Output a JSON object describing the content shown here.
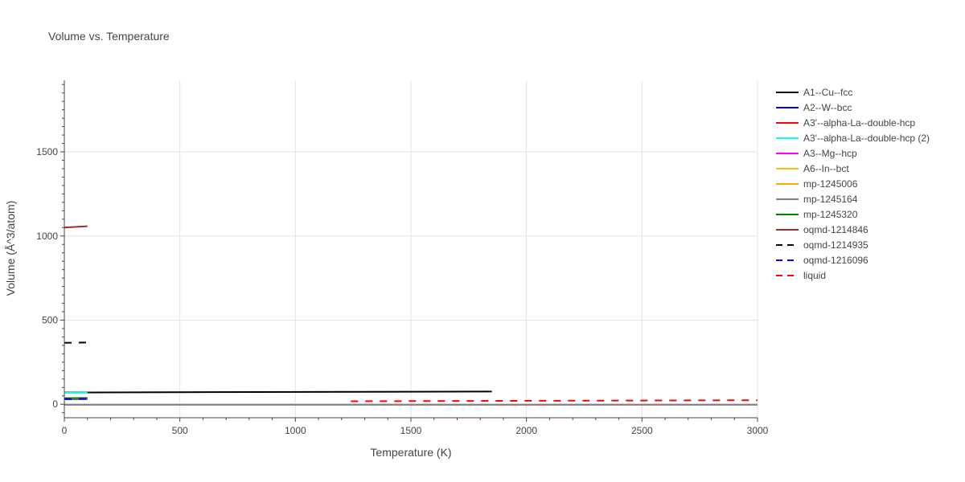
{
  "chart_data": {
    "type": "line",
    "title": "Volume vs. Temperature",
    "xlabel": "Temperature (K)",
    "ylabel": "Volume (Å^3/atom)",
    "xlim": [
      0,
      3000
    ],
    "ylim": [
      -80,
      1925
    ],
    "xticks": [
      0,
      500,
      1000,
      1500,
      2000,
      2500,
      3000
    ],
    "yticks": [
      0,
      500,
      1000,
      1500
    ],
    "xtick_labels": [
      "0",
      "500",
      "1000",
      "1500",
      "2000",
      "2500",
      "3000"
    ],
    "ytick_labels": [
      "0",
      "500",
      "1000",
      "1500"
    ],
    "grid": true,
    "legend_position": "right",
    "series": [
      {
        "name": "A1--Cu--fcc",
        "color": "#000000",
        "dash": "solid",
        "x": [
          0,
          1850
        ],
        "y": [
          70,
          76
        ]
      },
      {
        "name": "A2--W--bcc",
        "color": "#0000ff",
        "dash": "solid",
        "x": [
          0,
          100
        ],
        "y": [
          30,
          31
        ]
      },
      {
        "name": "A3'--alpha-La--double-hcp",
        "color": "#ff0000",
        "dash": "solid",
        "x": [
          0,
          100
        ],
        "y": [
          34,
          35
        ]
      },
      {
        "name": "A3'--alpha-La--double-hcp (2)",
        "color": "#00ffff",
        "dash": "solid",
        "x": [
          0,
          100
        ],
        "y": [
          68,
          69
        ]
      },
      {
        "name": "A3--Mg--hcp",
        "color": "#ff00ff",
        "dash": "solid",
        "x": [
          0,
          100
        ],
        "y": [
          35,
          36
        ]
      },
      {
        "name": "A6--In--bct",
        "color": "#ffbf00",
        "dash": "solid",
        "x": [
          0,
          100
        ],
        "y": [
          37,
          38
        ]
      },
      {
        "name": "mp-1245006",
        "color": "#ffa500",
        "dash": "solid",
        "x": [
          0,
          100
        ],
        "y": [
          33,
          34
        ]
      },
      {
        "name": "mp-1245164",
        "color": "#808080",
        "dash": "solid",
        "x": [
          0,
          3000
        ],
        "y": [
          -3,
          -3
        ]
      },
      {
        "name": "mp-1245320",
        "color": "#008000",
        "dash": "solid",
        "x": [
          0,
          100
        ],
        "y": [
          36,
          37
        ]
      },
      {
        "name": "oqmd-1214846",
        "color": "#a52a2a",
        "dash": "solid",
        "x": [
          0,
          100
        ],
        "y": [
          1050,
          1058
        ]
      },
      {
        "name": "oqmd-1214935",
        "color": "#000000",
        "dash": "dash",
        "x": [
          0,
          100
        ],
        "y": [
          365,
          367
        ]
      },
      {
        "name": "oqmd-1216096",
        "color": "#0000ff",
        "dash": "dash",
        "x": [
          0,
          100
        ],
        "y": [
          32,
          33
        ]
      },
      {
        "name": "liquid",
        "color": "#ff0000",
        "dash": "dash",
        "x": [
          1240,
          3000
        ],
        "y": [
          18,
          24
        ]
      }
    ]
  }
}
